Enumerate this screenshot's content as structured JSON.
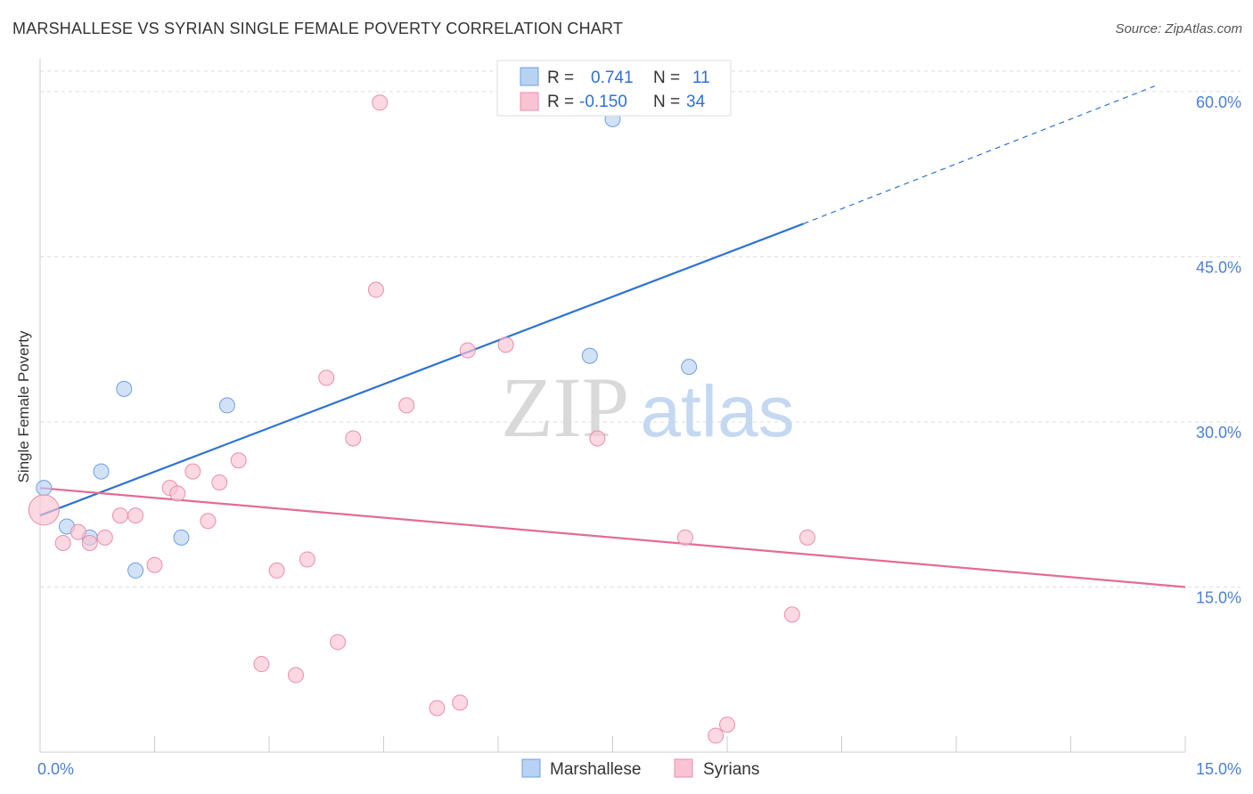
{
  "chart_data": {
    "type": "scatter",
    "title": "MARSHALLESE VS SYRIAN SINGLE FEMALE POVERTY CORRELATION CHART",
    "source": "Source: ZipAtlas.com",
    "watermark": {
      "zip": "ZIP",
      "atlas": "atlas"
    },
    "xlabel": "",
    "ylabel": "Single Female Poverty",
    "xlim": [
      0,
      15
    ],
    "ylim": [
      0,
      62.5
    ],
    "x_tick_labels": [
      {
        "value": 0,
        "label": "0.0%"
      },
      {
        "value": 15,
        "label": "15.0%"
      }
    ],
    "y_tick_labels": [
      {
        "value": 15,
        "label": "15.0%"
      },
      {
        "value": 30,
        "label": "30.0%"
      },
      {
        "value": 45,
        "label": "45.0%"
      },
      {
        "value": 60,
        "label": "60.0%"
      }
    ],
    "legend": {
      "rows": [
        {
          "r_label": "R = ",
          "r_value": "0.741",
          "n_label": "N = ",
          "n_value": "11",
          "color": "#b8d2f3",
          "stroke": "#6f9fe0"
        },
        {
          "r_label": "R = ",
          "r_value": "-0.150",
          "n_label": "N = ",
          "n_value": "34",
          "color": "#f9c3d3",
          "stroke": "#e88fac"
        }
      ]
    },
    "series": [
      {
        "name": "Marshallese",
        "color": "#b8d2f3",
        "stroke": "#6f9fe0",
        "trend_color": "#2f72d0",
        "trend": {
          "x0": 0,
          "y0": 21.5,
          "x1": 10.0,
          "y1": 48.0,
          "dash_x1": 14.6,
          "dash_y1": 60.5
        },
        "points": [
          {
            "x": 0.05,
            "y": 24.0
          },
          {
            "x": 0.35,
            "y": 20.5
          },
          {
            "x": 0.65,
            "y": 19.5
          },
          {
            "x": 0.8,
            "y": 25.5
          },
          {
            "x": 1.1,
            "y": 33.0
          },
          {
            "x": 1.25,
            "y": 16.5
          },
          {
            "x": 1.85,
            "y": 19.5
          },
          {
            "x": 2.45,
            "y": 31.5
          },
          {
            "x": 7.2,
            "y": 36.0
          },
          {
            "x": 8.5,
            "y": 35.0
          },
          {
            "x": 7.5,
            "y": 57.5
          }
        ]
      },
      {
        "name": "Syrians",
        "color": "#f9c3d3",
        "stroke": "#e88fac",
        "trend_color": "#e26c94",
        "trend": {
          "x0": 0,
          "y0": 24.0,
          "x1": 15.0,
          "y1": 15.0
        },
        "points": [
          {
            "x": 0.05,
            "y": 22.0,
            "big": true
          },
          {
            "x": 0.3,
            "y": 19.0
          },
          {
            "x": 0.5,
            "y": 20.0
          },
          {
            "x": 0.65,
            "y": 19.0
          },
          {
            "x": 0.85,
            "y": 19.5
          },
          {
            "x": 1.05,
            "y": 21.5
          },
          {
            "x": 1.25,
            "y": 21.5
          },
          {
            "x": 1.5,
            "y": 17.0
          },
          {
            "x": 1.7,
            "y": 24.0
          },
          {
            "x": 1.8,
            "y": 23.5
          },
          {
            "x": 2.0,
            "y": 25.5
          },
          {
            "x": 2.2,
            "y": 21.0
          },
          {
            "x": 2.35,
            "y": 24.5
          },
          {
            "x": 2.6,
            "y": 26.5
          },
          {
            "x": 2.9,
            "y": 8.0
          },
          {
            "x": 3.1,
            "y": 16.5
          },
          {
            "x": 3.35,
            "y": 7.0
          },
          {
            "x": 3.5,
            "y": 17.5
          },
          {
            "x": 3.75,
            "y": 34.0
          },
          {
            "x": 3.9,
            "y": 10.0
          },
          {
            "x": 4.1,
            "y": 28.5
          },
          {
            "x": 4.4,
            "y": 42.0
          },
          {
            "x": 4.45,
            "y": 59.0
          },
          {
            "x": 4.8,
            "y": 31.5
          },
          {
            "x": 5.2,
            "y": 4.0
          },
          {
            "x": 5.5,
            "y": 4.5
          },
          {
            "x": 5.6,
            "y": 36.5
          },
          {
            "x": 6.1,
            "y": 37.0
          },
          {
            "x": 7.3,
            "y": 28.5
          },
          {
            "x": 8.45,
            "y": 19.5
          },
          {
            "x": 8.85,
            "y": 1.5
          },
          {
            "x": 9.0,
            "y": 2.5
          },
          {
            "x": 9.85,
            "y": 12.5
          },
          {
            "x": 10.05,
            "y": 19.5
          }
        ]
      }
    ]
  }
}
